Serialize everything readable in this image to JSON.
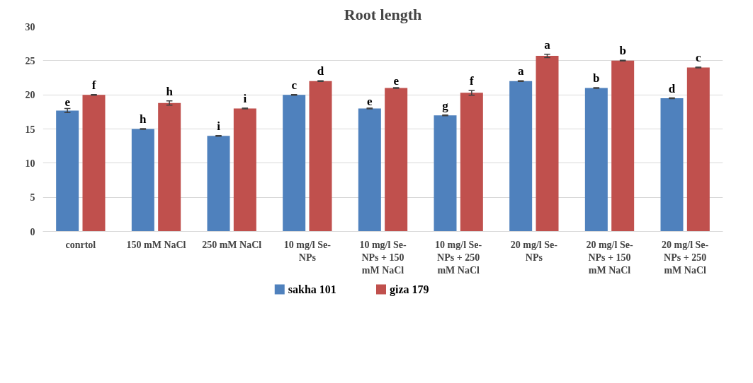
{
  "chart_data": {
    "type": "bar",
    "title": "Root length",
    "categories": [
      "conrtol",
      "150 mM NaCl",
      "250 mM NaCl",
      "10 mg/l Se-NPs",
      "10 mg/l Se-NPs + 150 mM NaCl",
      "10 mg/l Se-NPs + 250 mM NaCl",
      "20 mg/l Se-NPs",
      "20 mg/l Se-NPs + 150 mM NaCl",
      "20 mg/l Se-NPs + 250 mM NaCl"
    ],
    "series": [
      {
        "name": "sakha 101",
        "color": "#4f81bd",
        "values": [
          17.7,
          15,
          14,
          20,
          18,
          17,
          22,
          21,
          19.5
        ],
        "errors": [
          0.3,
          0.05,
          0.05,
          0.05,
          0.05,
          0.05,
          0.05,
          0.05,
          0.05
        ],
        "value_labels": [
          "e",
          "h",
          "i",
          "c",
          "e",
          "g",
          "a",
          "b",
          "d"
        ]
      },
      {
        "name": "giza 179",
        "color": "#c0504d",
        "values": [
          20,
          18.8,
          18,
          22,
          21,
          20.3,
          25.7,
          25,
          24
        ],
        "errors": [
          0.05,
          0.3,
          0.05,
          0.05,
          0.05,
          0.35,
          0.25,
          0.05,
          0.05
        ],
        "value_labels": [
          "f",
          "h",
          "i",
          "d",
          "e",
          "f",
          "a",
          "b",
          "c"
        ]
      }
    ],
    "ylim": [
      0,
      30
    ],
    "yticks": [
      0,
      5,
      10,
      15,
      20,
      25,
      30
    ],
    "grid": "y",
    "legend": "bottom"
  }
}
